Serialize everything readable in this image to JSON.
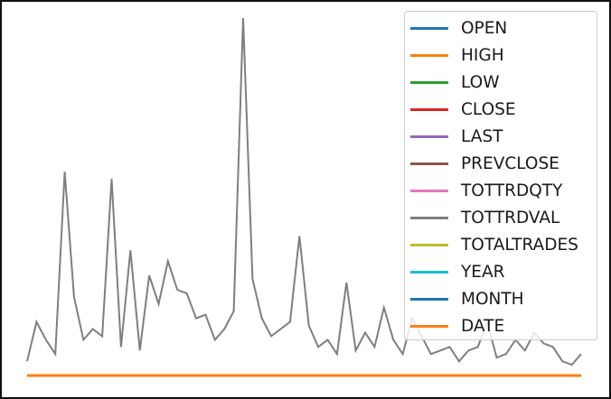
{
  "chart_data": {
    "type": "line",
    "title": "",
    "xlabel": "",
    "ylabel": "",
    "grid": false,
    "legend_position": "upper right",
    "ylim": [
      0,
      100
    ],
    "series": [
      {
        "name": "OPEN",
        "color": "#1f77b4",
        "values": [
          0
        ]
      },
      {
        "name": "HIGH",
        "color": "#ff7f0e",
        "values": [
          0
        ]
      },
      {
        "name": "LOW",
        "color": "#2ca02c",
        "values": [
          0
        ]
      },
      {
        "name": "CLOSE",
        "color": "#d62728",
        "values": [
          0
        ]
      },
      {
        "name": "LAST",
        "color": "#9467bd",
        "values": [
          0
        ]
      },
      {
        "name": "PREVCLOSE",
        "color": "#8c564b",
        "values": [
          0
        ]
      },
      {
        "name": "TOTTRDQTY",
        "color": "#e377c2",
        "values": [
          0
        ]
      },
      {
        "name": "TOTTRDVAL",
        "color": "#7f7f7f",
        "values": [
          4,
          15,
          10,
          6,
          57,
          22,
          10,
          13,
          11,
          55,
          8,
          35,
          7,
          28,
          20,
          32,
          24,
          23,
          16,
          17,
          10,
          13,
          18,
          100,
          27,
          16,
          11,
          13,
          15,
          39,
          14,
          8,
          10,
          6,
          26,
          7,
          12,
          8,
          19,
          10,
          6,
          16,
          11,
          6,
          7,
          8,
          4,
          7,
          8,
          15,
          5,
          6,
          10,
          7,
          12,
          9,
          8,
          4,
          3,
          6
        ]
      },
      {
        "name": "TOTALTRADES",
        "color": "#bcbd22",
        "values": [
          0
        ]
      },
      {
        "name": "YEAR",
        "color": "#17becf",
        "values": [
          0
        ]
      },
      {
        "name": "MONTH",
        "color": "#1f77b4",
        "values": [
          0
        ]
      },
      {
        "name": "DATE",
        "color": "#ff7f0e",
        "values": [
          0
        ]
      }
    ]
  }
}
